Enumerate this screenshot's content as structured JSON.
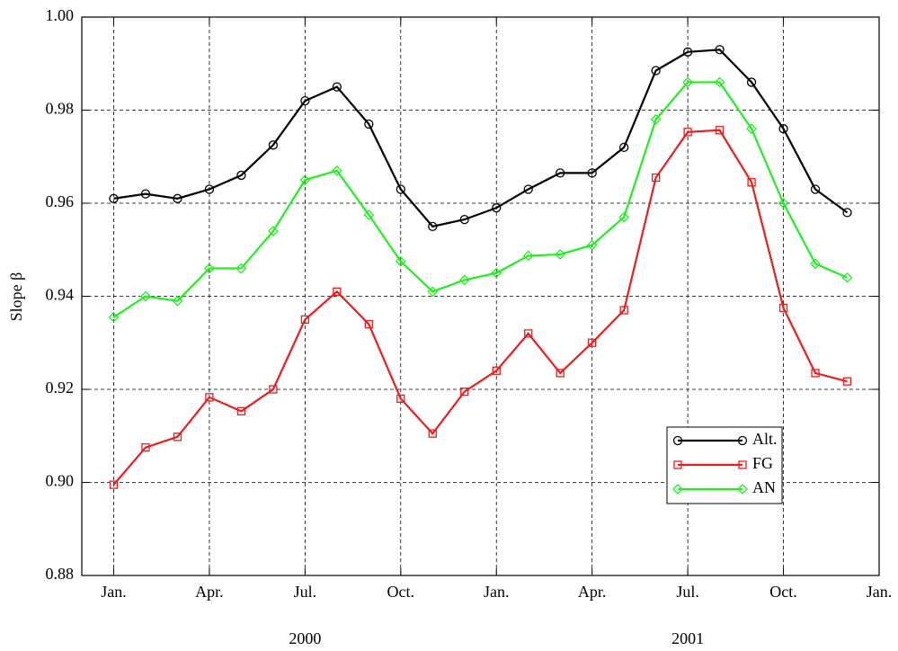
{
  "chart_data": {
    "type": "line",
    "y_label": "Slope  β",
    "x": [
      0,
      1,
      2,
      3,
      4,
      5,
      6,
      7,
      8,
      9,
      10,
      11,
      12,
      13,
      14,
      15,
      16,
      17,
      18,
      19,
      20,
      21,
      22,
      23
    ],
    "xlim": [
      -1,
      24
    ],
    "xticks": [
      {
        "value": 0,
        "label": "Jan."
      },
      {
        "value": 3,
        "label": "Apr."
      },
      {
        "value": 6,
        "label": "Jul."
      },
      {
        "value": 9,
        "label": "Oct."
      },
      {
        "value": 12,
        "label": "Jan."
      },
      {
        "value": 15,
        "label": "Apr."
      },
      {
        "value": 18,
        "label": "Jul."
      },
      {
        "value": 21,
        "label": "Oct."
      },
      {
        "value": 24,
        "label": "Jan."
      }
    ],
    "year_labels": [
      "2000",
      "2001"
    ],
    "ylim": [
      0.88,
      1.0
    ],
    "yticks": [
      0.88,
      {
        "value": 0.9,
        "label": "0.90"
      },
      0.92,
      0.94,
      0.96,
      0.98,
      {
        "value": 1.0,
        "label": "1.00"
      }
    ],
    "grid": true,
    "legend": "lower right",
    "series": [
      {
        "name": "Alt.",
        "color": "#000000",
        "marker": "circle",
        "values": [
          0.961,
          0.962,
          0.961,
          0.963,
          0.966,
          0.9725,
          0.982,
          0.985,
          0.977,
          0.963,
          0.955,
          0.9565,
          0.959,
          0.963,
          0.9665,
          0.9665,
          0.972,
          0.9885,
          0.9925,
          0.993,
          0.986,
          0.976,
          0.963,
          0.958
        ]
      },
      {
        "name": "FG",
        "color": "#ee1c1c",
        "marker": "square",
        "values": [
          0.8995,
          0.9075,
          0.9098,
          0.9183,
          0.9153,
          0.92,
          0.935,
          0.941,
          0.934,
          0.918,
          0.9105,
          0.9195,
          0.924,
          0.932,
          0.9235,
          0.93,
          0.937,
          0.9655,
          0.9753,
          0.9757,
          0.9645,
          0.9375,
          0.9235,
          0.9217
        ]
      },
      {
        "name": "AN",
        "color": "#22ee22",
        "marker": "diamond",
        "values": [
          0.9355,
          0.94,
          0.939,
          0.946,
          0.946,
          0.954,
          0.965,
          0.967,
          0.9575,
          0.9475,
          0.941,
          0.9435,
          0.945,
          0.9487,
          0.949,
          0.951,
          0.957,
          0.978,
          0.986,
          0.986,
          0.976,
          0.96,
          0.947,
          0.944
        ]
      }
    ]
  }
}
